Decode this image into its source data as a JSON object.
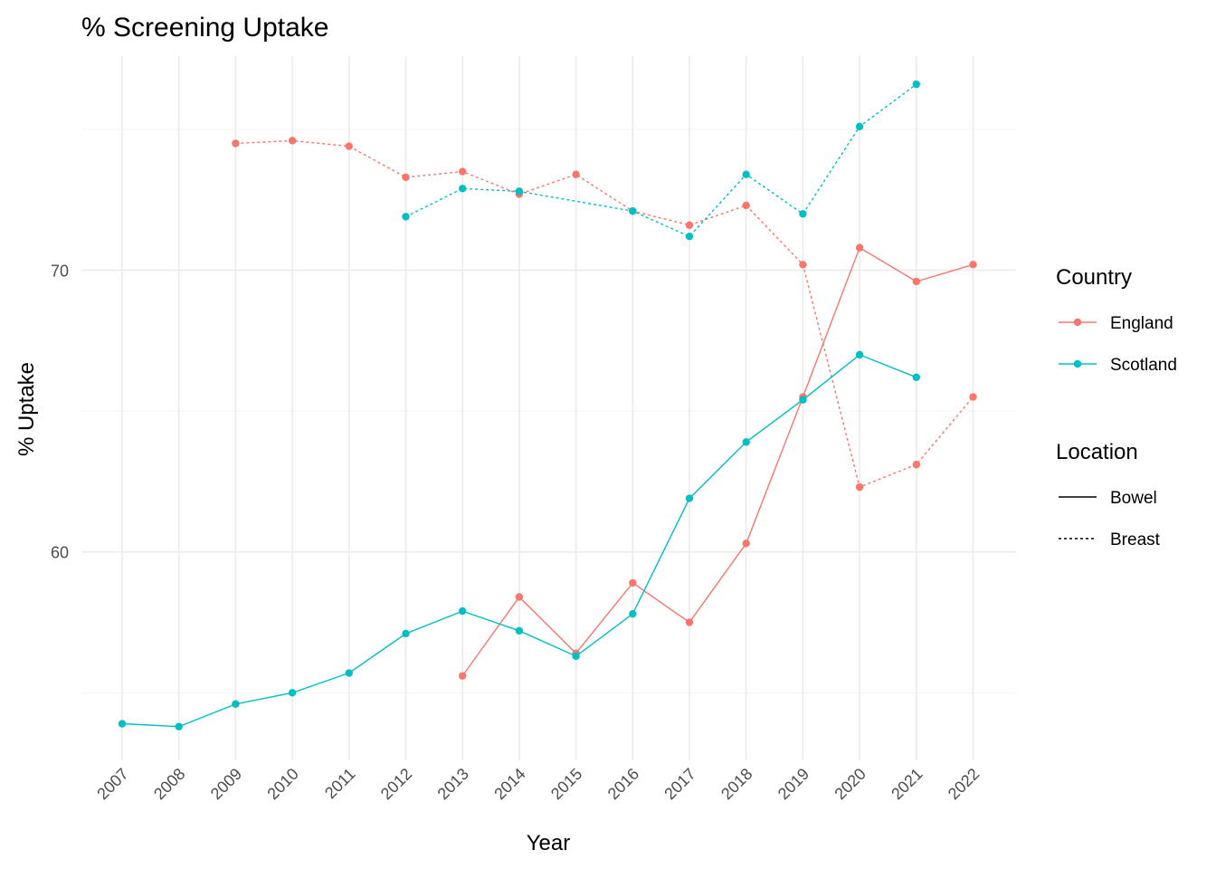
{
  "chart_data": {
    "type": "line",
    "title": "% Screening Uptake",
    "xlabel": "Year",
    "ylabel": "% Uptake",
    "categories": [
      "2007",
      "2008",
      "2009",
      "2010",
      "2011",
      "2012",
      "2013",
      "2014",
      "2015",
      "2016",
      "2017",
      "2018",
      "2019",
      "2020",
      "2021",
      "2022"
    ],
    "ylim": [
      52.6,
      77.6
    ],
    "yticks": [
      60,
      70
    ],
    "grid": true,
    "legend_placement": "right",
    "legends": {
      "color": {
        "title": "Country",
        "items": [
          {
            "label": "England",
            "color": "#F8766D"
          },
          {
            "label": "Scotland",
            "color": "#00BFC4"
          }
        ]
      },
      "linetype": {
        "title": "Location",
        "items": [
          {
            "label": "Bowel",
            "dash": "solid"
          },
          {
            "label": "Breast",
            "dash": "dotted"
          }
        ]
      }
    },
    "series": [
      {
        "country": "England",
        "location": "Breast",
        "color": "#F8766D",
        "dash": "dotted",
        "x": [
          "2009",
          "2010",
          "2011",
          "2012",
          "2013",
          "2014",
          "2015",
          "2016",
          "2017",
          "2018",
          "2019",
          "2020",
          "2021",
          "2022"
        ],
        "values": [
          74.5,
          74.6,
          74.4,
          73.3,
          73.5,
          72.7,
          73.4,
          72.1,
          71.6,
          72.3,
          70.2,
          62.3,
          63.1,
          65.5
        ]
      },
      {
        "country": "Scotland",
        "location": "Breast",
        "color": "#00BFC4",
        "dash": "dotted",
        "x": [
          "2012",
          "2013",
          "2014",
          "2016",
          "2017",
          "2018",
          "2019",
          "2020",
          "2021"
        ],
        "values": [
          71.9,
          72.9,
          72.8,
          72.1,
          71.2,
          73.4,
          72.0,
          75.1,
          76.6
        ]
      },
      {
        "country": "England",
        "location": "Bowel",
        "color": "#F8766D",
        "dash": "solid",
        "x": [
          "2013",
          "2014",
          "2015",
          "2016",
          "2017",
          "2018",
          "2019",
          "2020",
          "2021",
          "2022"
        ],
        "values": [
          55.6,
          58.4,
          56.4,
          58.9,
          57.5,
          60.3,
          65.5,
          70.8,
          69.6,
          70.2
        ]
      },
      {
        "country": "Scotland",
        "location": "Bowel",
        "color": "#00BFC4",
        "dash": "solid",
        "x": [
          "2007",
          "2008",
          "2009",
          "2010",
          "2011",
          "2012",
          "2013",
          "2014",
          "2015",
          "2016",
          "2017",
          "2018",
          "2019",
          "2020",
          "2021"
        ],
        "values": [
          53.9,
          53.8,
          54.6,
          55.0,
          55.7,
          57.1,
          57.9,
          57.2,
          56.3,
          57.8,
          61.9,
          63.9,
          65.4,
          67.0,
          66.2
        ]
      }
    ]
  }
}
